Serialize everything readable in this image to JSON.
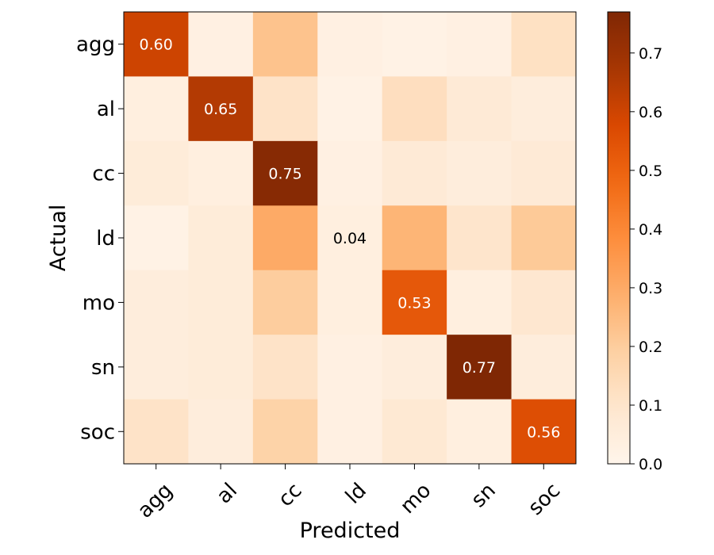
{
  "chart_data": {
    "type": "heatmap",
    "title": "",
    "xlabel": "Predicted",
    "ylabel": "Actual",
    "x_categories": [
      "agg",
      "al",
      "cc",
      "ld",
      "mo",
      "sn",
      "soc"
    ],
    "y_categories": [
      "agg",
      "al",
      "cc",
      "ld",
      "mo",
      "sn",
      "soc"
    ],
    "values": [
      [
        0.6,
        0.03,
        0.23,
        0.03,
        0.02,
        0.03,
        0.12
      ],
      [
        0.04,
        0.65,
        0.11,
        0.02,
        0.13,
        0.07,
        0.05
      ],
      [
        0.06,
        0.04,
        0.75,
        0.03,
        0.07,
        0.05,
        0.07
      ],
      [
        0.02,
        0.06,
        0.3,
        0.04,
        0.27,
        0.1,
        0.21
      ],
      [
        0.05,
        0.06,
        0.2,
        0.04,
        0.53,
        0.04,
        0.09
      ],
      [
        0.05,
        0.06,
        0.11,
        0.03,
        0.05,
        0.77,
        0.05
      ],
      [
        0.11,
        0.05,
        0.18,
        0.03,
        0.08,
        0.04,
        0.56
      ]
    ],
    "cell_labels": [
      {
        "row": 0,
        "col": 0,
        "text": "0.60"
      },
      {
        "row": 1,
        "col": 1,
        "text": "0.65"
      },
      {
        "row": 2,
        "col": 2,
        "text": "0.75"
      },
      {
        "row": 3,
        "col": 3,
        "text": "0.04"
      },
      {
        "row": 4,
        "col": 4,
        "text": "0.53"
      },
      {
        "row": 5,
        "col": 5,
        "text": "0.77"
      },
      {
        "row": 6,
        "col": 6,
        "text": "0.56"
      }
    ],
    "colormap": "Oranges",
    "colorbar": {
      "min": 0.0,
      "max": 0.77,
      "ticks": [
        0.0,
        0.1,
        0.2,
        0.3,
        0.4,
        0.5,
        0.6,
        0.7
      ],
      "tick_labels": [
        "0.0",
        "0.1",
        "0.2",
        "0.3",
        "0.4",
        "0.5",
        "0.6",
        "0.7"
      ]
    }
  }
}
